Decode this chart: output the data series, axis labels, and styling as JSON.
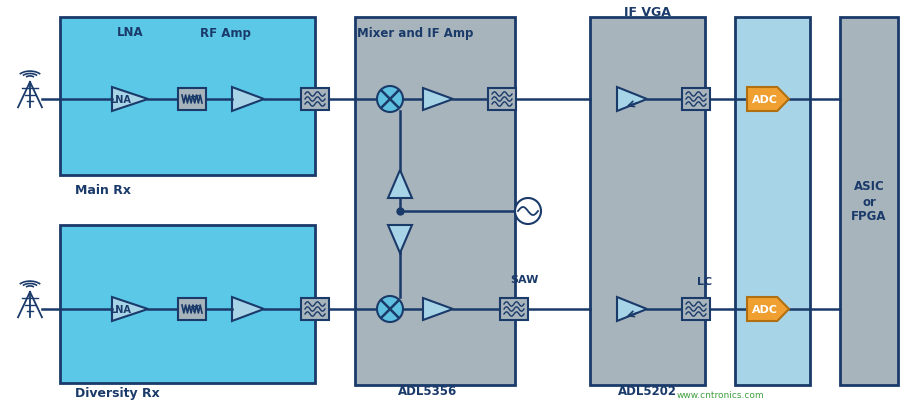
{
  "bg_color": "#ffffff",
  "light_blue": "#5BC8E8",
  "gray_block": "#A8B4BC",
  "adc_blue": "#A8D4E8",
  "orange": "#F0A030",
  "dark_blue": "#1A3A6A",
  "title_text": "IF VGA",
  "label_main": "Main Rx",
  "label_div": "Diversity Rx",
  "label_lna_box": "LNA",
  "label_rfamp": "RF Amp",
  "label_mixer": "Mixer and IF Amp",
  "label_adl5356": "ADL5356",
  "label_adl5202": "ADL5202",
  "label_saw": "SAW",
  "label_lc": "LC",
  "label_asic": "ASIC\nor\nFPGA",
  "label_adc": "ADC",
  "label_lna_chip": "LNA",
  "watermark": "www.cntronics.com",
  "green_color": "#40A040"
}
